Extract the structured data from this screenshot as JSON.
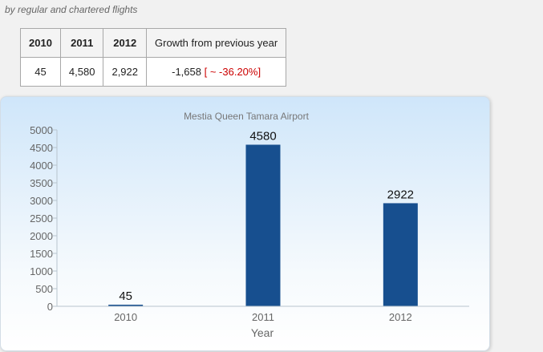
{
  "subtitle": "by regular and chartered flights",
  "table": {
    "headers": [
      "2010",
      "2011",
      "2012",
      "Growth from previous year"
    ],
    "row": {
      "y2010": "45",
      "y2011": "4,580",
      "y2012": "2,922",
      "growth": "-1,658",
      "growth_pct": "[ ~ -36.20%]"
    }
  },
  "colors": {
    "bar": "#174f8f",
    "negative": "#cc0000"
  },
  "chart_data": {
    "type": "bar",
    "title": "Mestia Queen Tamara Airport",
    "xlabel": "Year",
    "ylabel": "",
    "categories": [
      "2010",
      "2011",
      "2012"
    ],
    "values": [
      45,
      4580,
      2922
    ],
    "ylim": [
      0,
      5000
    ],
    "yticks": [
      0,
      500,
      1000,
      1500,
      2000,
      2500,
      3000,
      3500,
      4000,
      4500,
      5000
    ],
    "data_labels": [
      "45",
      "4580",
      "2922"
    ],
    "grid": false,
    "legend": "none"
  }
}
